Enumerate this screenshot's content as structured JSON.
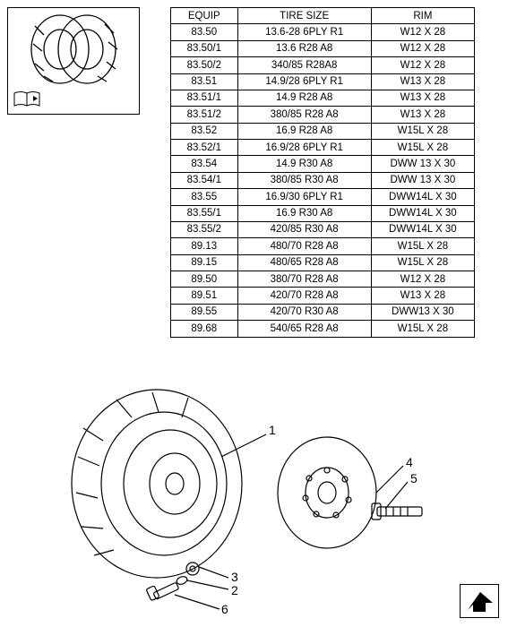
{
  "table": {
    "headers": [
      "EQUIP",
      "TIRE SIZE",
      "RIM"
    ],
    "rows": [
      [
        "83.50",
        "13.6-28 6PLY R1",
        "W12 X 28"
      ],
      [
        "83.50/1",
        "13.6 R28 A8",
        "W12 X 28"
      ],
      [
        "83.50/2",
        "340/85 R28A8",
        "W12 X 28"
      ],
      [
        "83.51",
        "14.9/28 6PLY R1",
        "W13 X 28"
      ],
      [
        "83.51/1",
        "14.9 R28 A8",
        "W13 X 28"
      ],
      [
        "83.51/2",
        "380/85 R28 A8",
        "W13 X 28"
      ],
      [
        "83.52",
        "16.9 R28 A8",
        "W15L X 28"
      ],
      [
        "83.52/1",
        "16.9/28 6PLY R1",
        "W15L X 28"
      ],
      [
        "83.54",
        "14.9 R30 A8",
        "DWW 13 X 30"
      ],
      [
        "83.54/1",
        "380/85 R30 A8",
        "DWW 13 X 30"
      ],
      [
        "83.55",
        "16.9/30 6PLY R1",
        "DWW14L X 30"
      ],
      [
        "83.55/1",
        "16.9 R30 A8",
        "DWW14L X 30"
      ],
      [
        "83.55/2",
        "420/85 R30 A8",
        "DWW14L X 30"
      ],
      [
        "89.13",
        "480/70 R28 A8",
        "W15L X 28"
      ],
      [
        "89.15",
        "480/65 R28 A8",
        "W15L X 28"
      ],
      [
        "89.50",
        "380/70 R28 A8",
        "W12 X 28"
      ],
      [
        "89.51",
        "420/70 R28 A8",
        "W13 X 28"
      ],
      [
        "89.55",
        "420/70 R30 A8",
        "DWW13 X 30"
      ],
      [
        "89.68",
        "540/65 R28 A8",
        "W15L X 28"
      ]
    ],
    "font_size": 11.5,
    "border_color": "#000000"
  },
  "callouts": {
    "c1": "1",
    "c2": "2",
    "c3": "3",
    "c4": "4",
    "c5": "5",
    "c6": "6"
  },
  "colors": {
    "background": "#ffffff",
    "line": "#000000",
    "text": "#000000"
  }
}
